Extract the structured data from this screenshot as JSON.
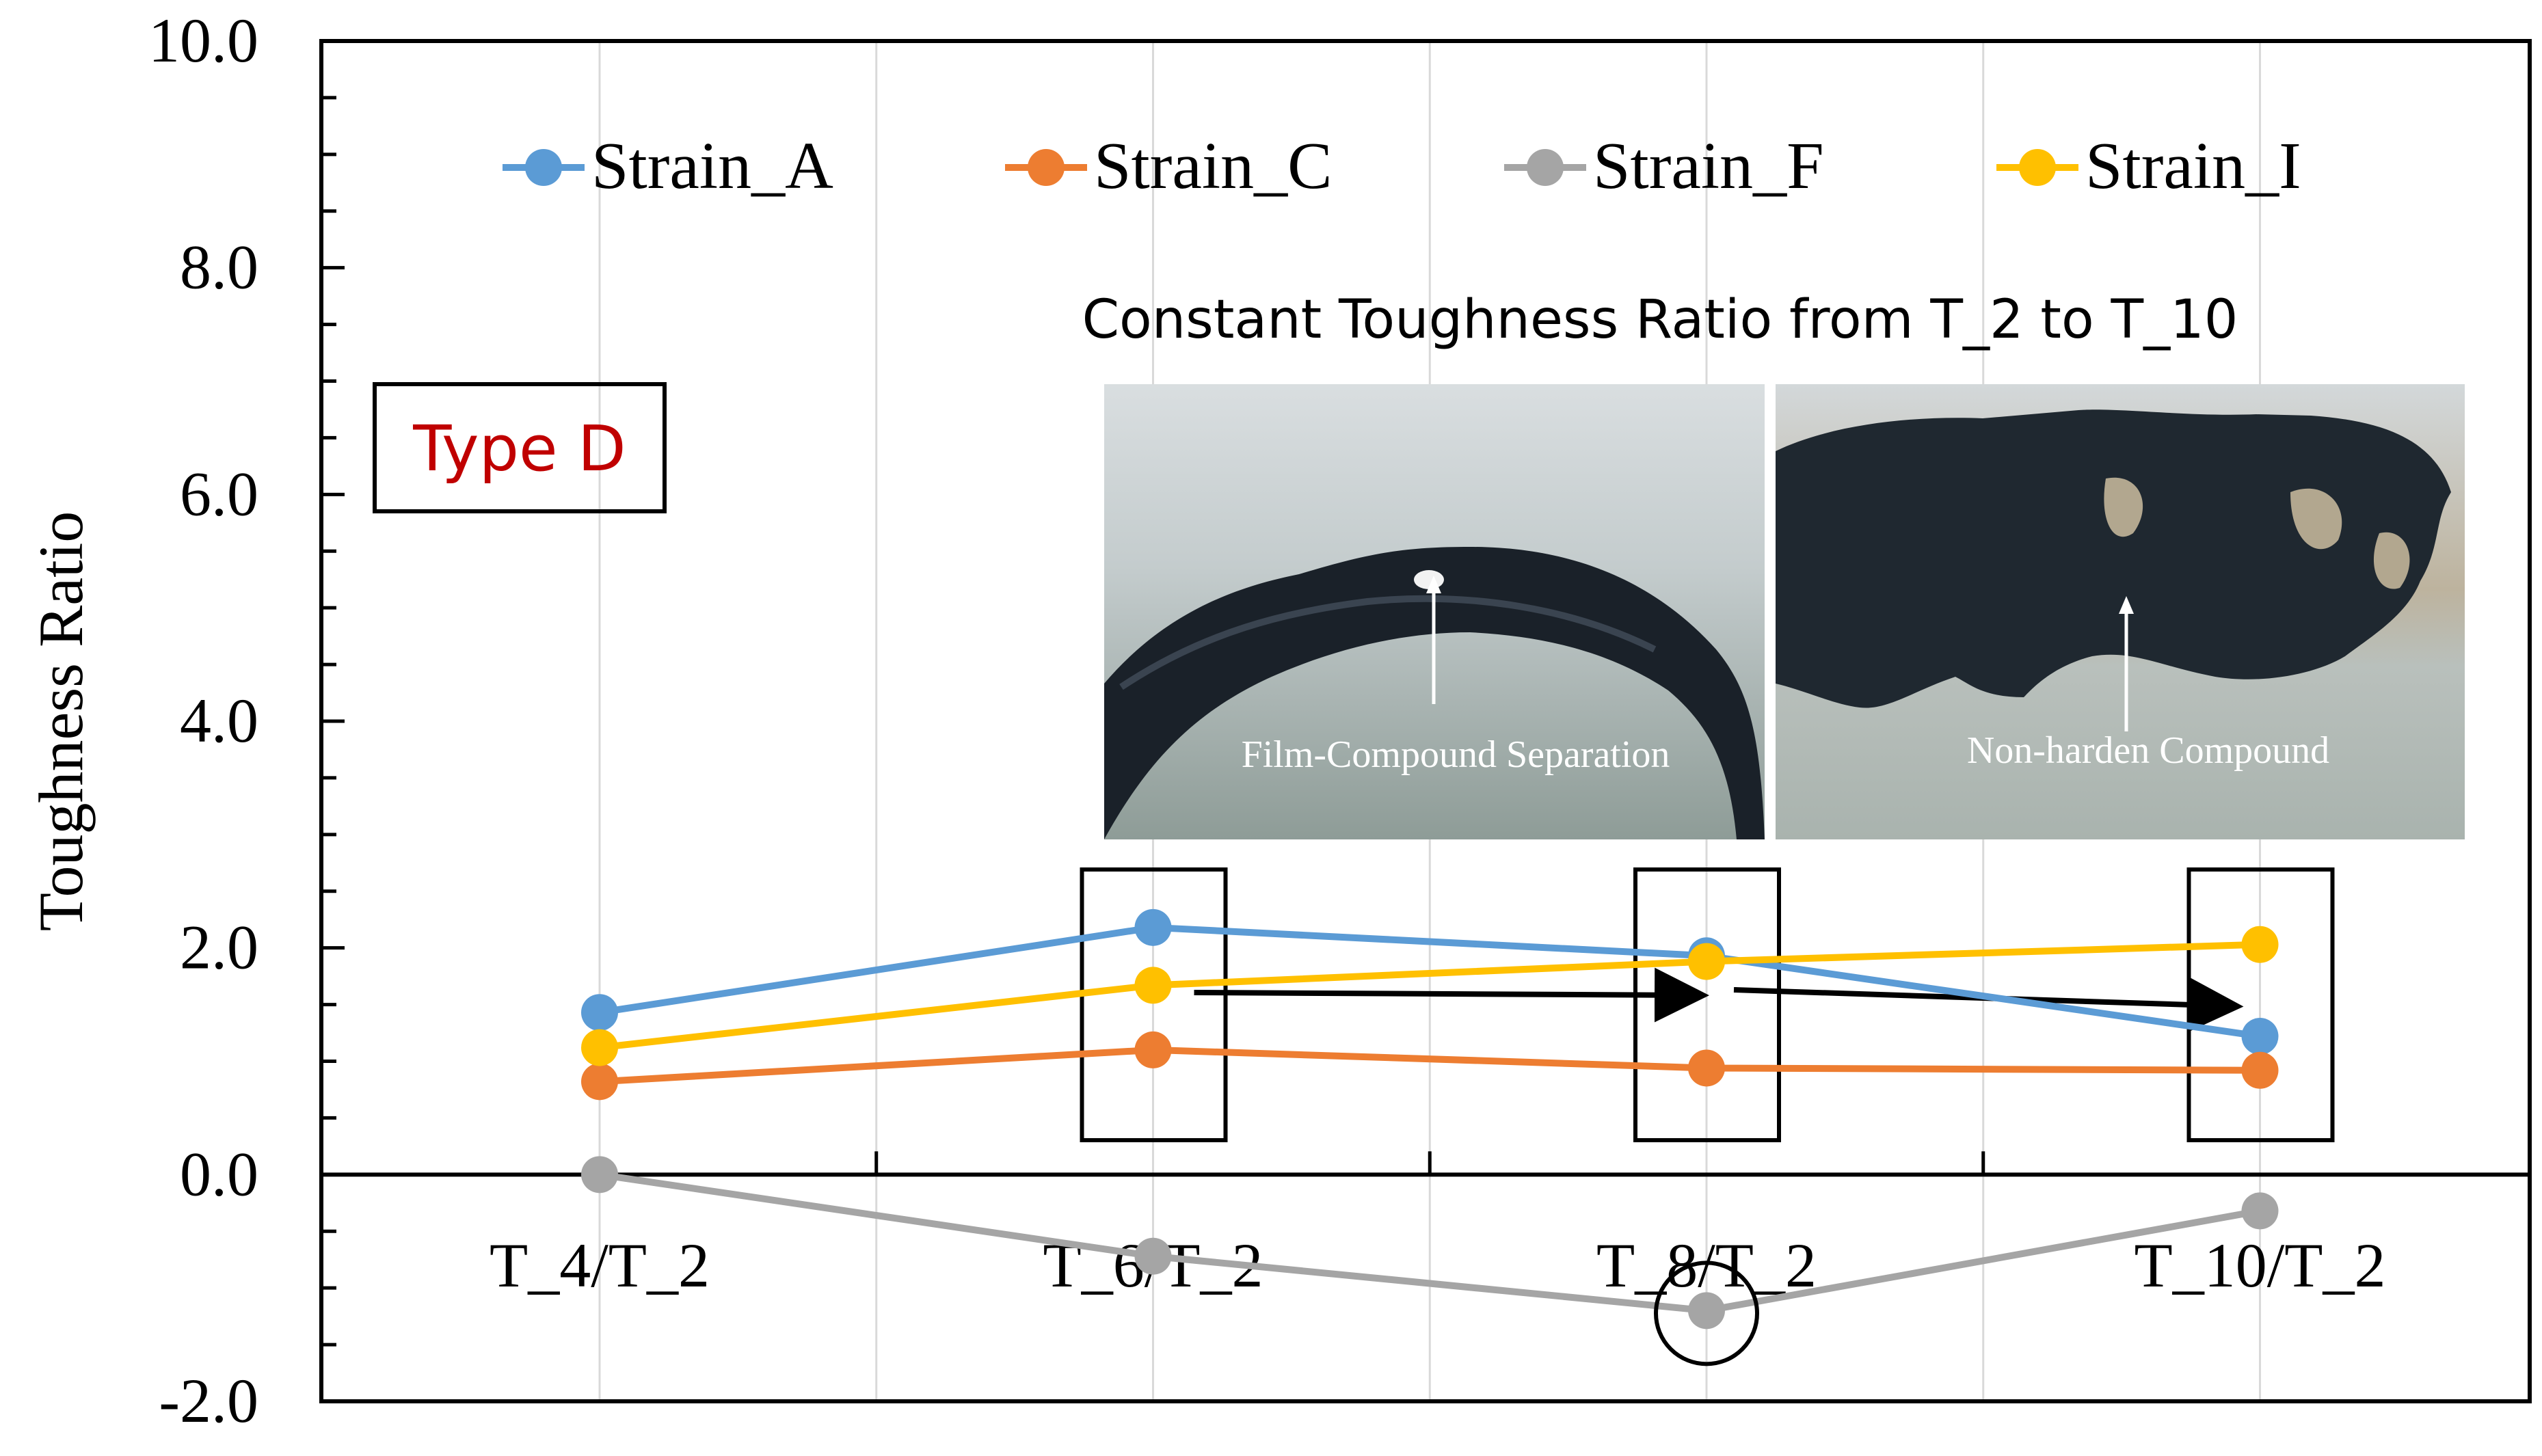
{
  "chart_data": {
    "type": "line",
    "title": "",
    "xlabel": "",
    "ylabel": "Toughness Ratio",
    "ylim": [
      -2.0,
      10.0
    ],
    "yticks": [
      "-2.0",
      "0.0",
      "2.0",
      "4.0",
      "6.0",
      "8.0",
      "10.0"
    ],
    "ytick_values": [
      -2,
      0,
      2,
      4,
      6,
      8,
      10
    ],
    "categories": [
      "T_4/T_2",
      "T_6/T_2",
      "T_8/T_2",
      "T_10/T_2"
    ],
    "grid": "vertical",
    "legend_position": "top",
    "series": [
      {
        "name": "Strain_A",
        "color": "#5B9BD5",
        "values": [
          1.43,
          2.18,
          1.93,
          1.22
        ]
      },
      {
        "name": "Strain_C",
        "color": "#ED7D31",
        "values": [
          0.82,
          1.1,
          0.94,
          0.92
        ]
      },
      {
        "name": "Strain_F",
        "color": "#A5A5A5",
        "values": [
          0.0,
          -0.72,
          -1.2,
          -0.32
        ]
      },
      {
        "name": "Strain_I",
        "color": "#FFC000",
        "values": [
          1.12,
          1.67,
          1.88,
          2.03
        ]
      }
    ],
    "annotations": {
      "type_label": "Type D",
      "type_label_color": "#C00000",
      "inset_caption": "Constant Toughness Ratio from T_2 to T_10",
      "photo_left_label": "Film-Compound Separation",
      "photo_right_label": "Non-harden Compound",
      "highlight_boxes_categories": [
        "T_6/T_2",
        "T_8/T_2",
        "T_10/T_2"
      ],
      "highlight_circle": {
        "series": "Strain_F",
        "category": "T_8/T_2"
      }
    }
  }
}
